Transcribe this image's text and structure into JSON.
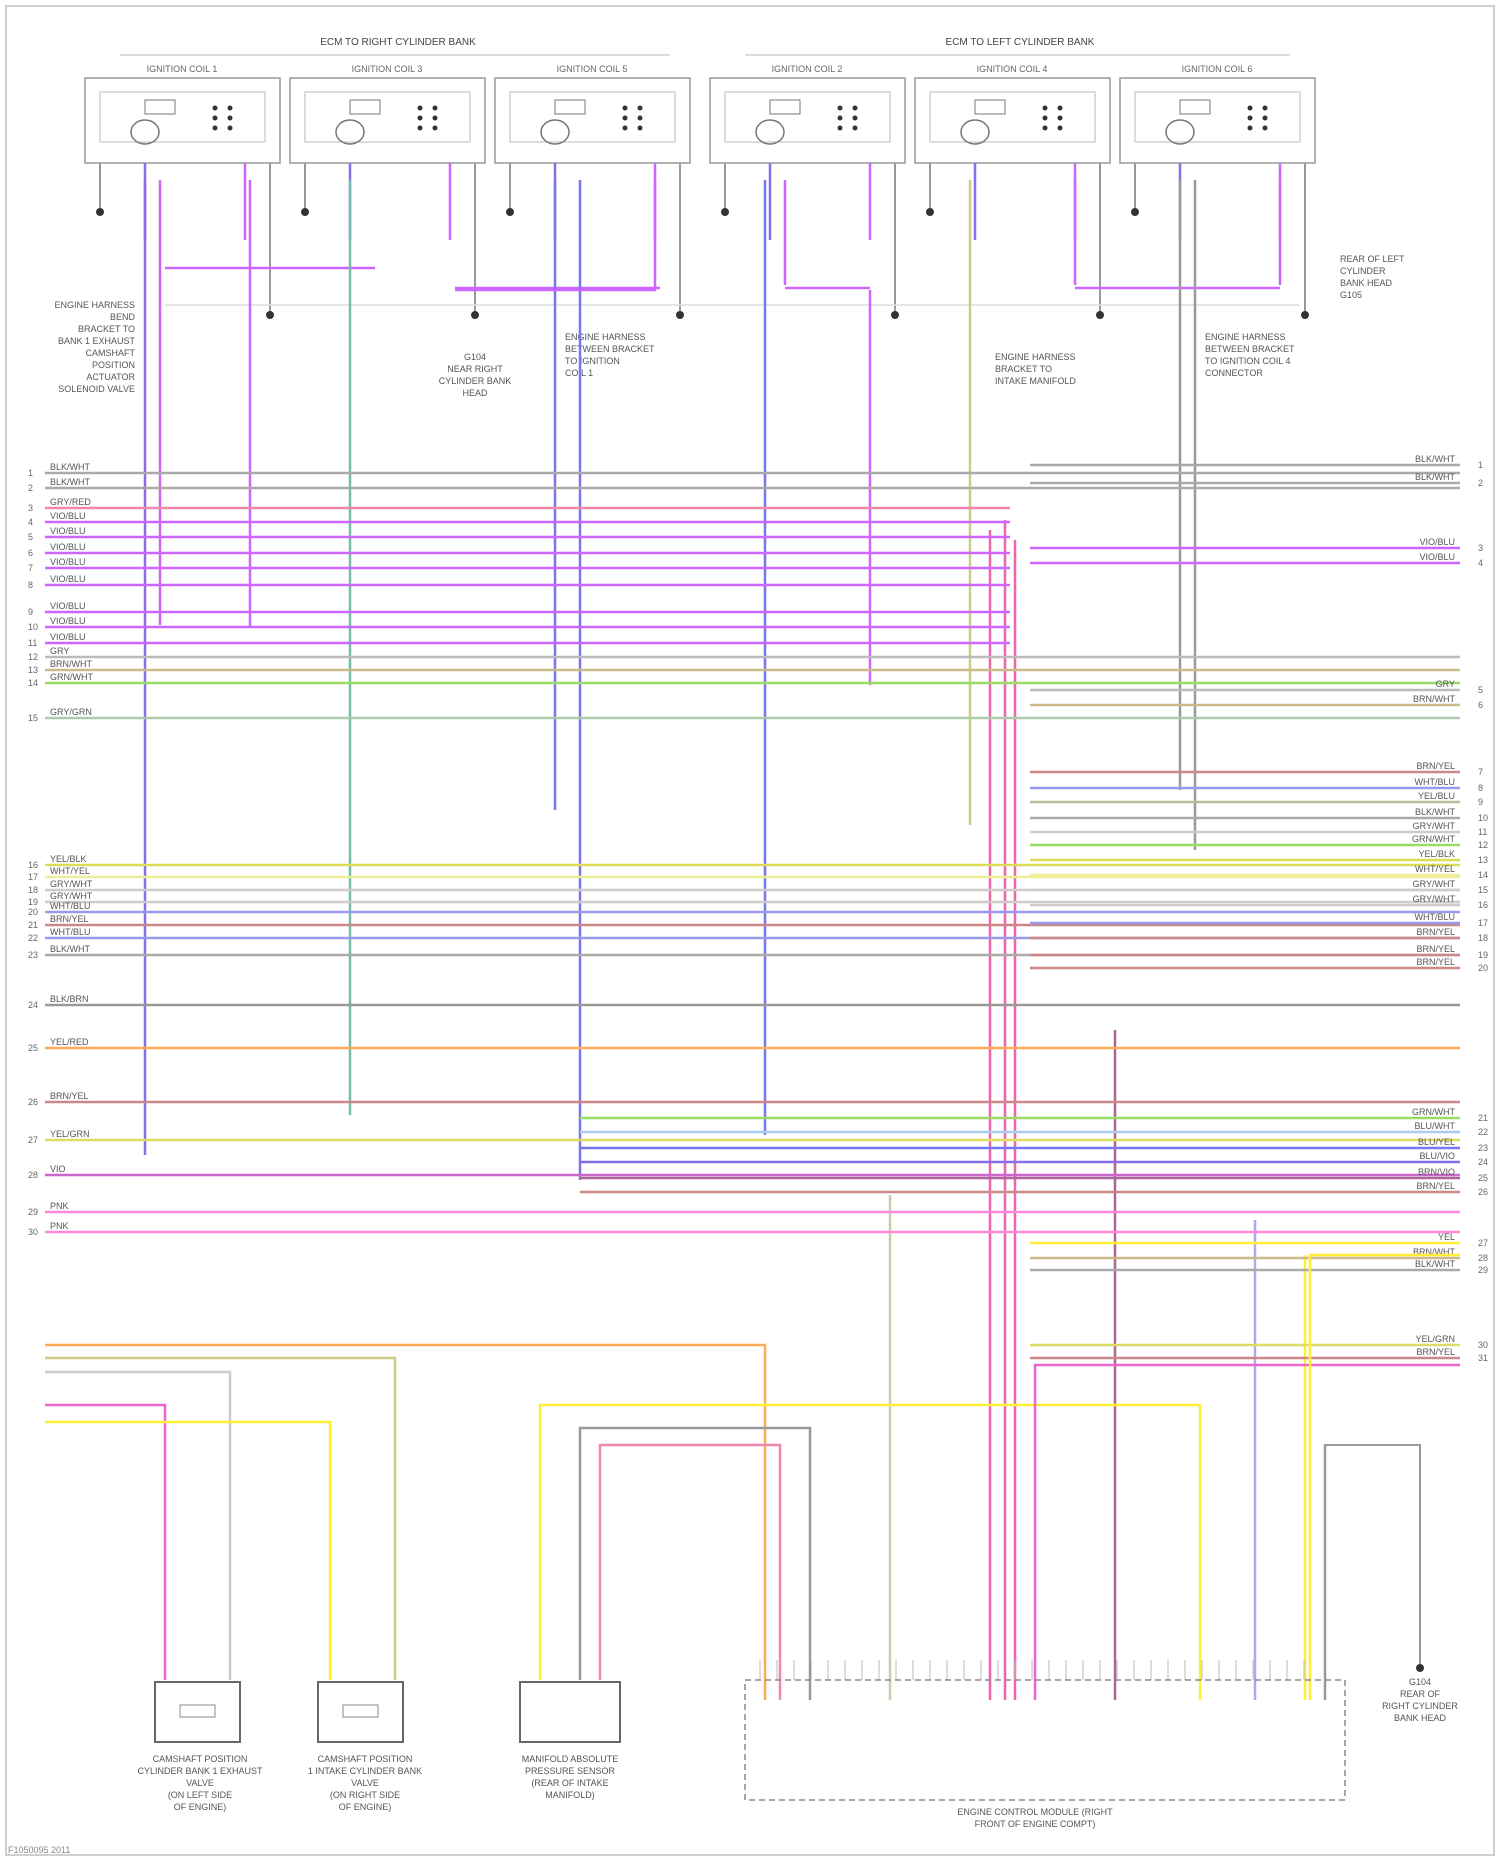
{
  "header": {
    "right_bank": "ECM TO RIGHT CYLINDER BANK",
    "left_bank": "ECM TO LEFT CYLINDER BANK"
  },
  "coils": [
    {
      "label": "IGNITION COIL 1"
    },
    {
      "label": "IGNITION COIL 3"
    },
    {
      "label": "IGNITION COIL 5"
    },
    {
      "label": "IGNITION COIL 2"
    },
    {
      "label": "IGNITION COIL 4"
    },
    {
      "label": "IGNITION COIL 6"
    }
  ],
  "notes": {
    "left_engine_harness": "ENGINE HARNESS BEND BRACKET TO BANK 1 EXHAUST CAMSHAFT POSITION ACTUATOR SOLENOID VALVE",
    "right_ground": "G104 NEAR RIGHT CYLINDER BANK HEAD",
    "engine_harness_1": "ENGINE HARNESS BETWEEN BRACKET TO IGNITION COIL 1",
    "engine_harness_2": "ENGINE HARNESS BRACKET TO INTAKE MANIFOLD",
    "engine_harness_3": "ENGINE HARNESS BETWEEN BRACKET TO IGNITION COIL 4 CONNECTOR",
    "left_ground": "REAR OF LEFT CYLINDER BANK HEAD G105"
  },
  "left_wires": [
    {
      "pin": "1",
      "label": "BLK/WHT"
    },
    {
      "pin": "2",
      "label": "BLK/WHT"
    },
    {
      "pin": "3",
      "label": "GRY/RED"
    },
    {
      "pin": "4",
      "label": "VIO/BLU"
    },
    {
      "pin": "5",
      "label": "VIO/BLU"
    },
    {
      "pin": "6",
      "label": "VIO/BLU"
    },
    {
      "pin": "7",
      "label": "VIO/BLU"
    },
    {
      "pin": "8",
      "label": "VIO/BLU"
    },
    {
      "pin": "9",
      "label": "VIO/BLU"
    },
    {
      "pin": "10",
      "label": "VIO/BLU"
    },
    {
      "pin": "11",
      "label": "VIO/BLU"
    },
    {
      "pin": "12",
      "label": "GRY"
    },
    {
      "pin": "13",
      "label": "BRN/WHT"
    },
    {
      "pin": "14",
      "label": "GRN/WHT"
    },
    {
      "pin": "15",
      "label": "GRY/GRN"
    },
    {
      "pin": "16",
      "label": "YEL/BLK"
    },
    {
      "pin": "17",
      "label": "WHT/YEL"
    },
    {
      "pin": "18",
      "label": "GRY/WHT"
    },
    {
      "pin": "19",
      "label": "GRY/WHT"
    },
    {
      "pin": "20",
      "label": "WHT/BLU"
    },
    {
      "pin": "21",
      "label": "BRN/YEL"
    },
    {
      "pin": "22",
      "label": "WHT/BLU"
    },
    {
      "pin": "23",
      "label": "BLK/WHT"
    },
    {
      "pin": "24",
      "label": "BLK/BRN"
    },
    {
      "pin": "25",
      "label": "YEL/RED"
    },
    {
      "pin": "26",
      "label": "BRN/YEL"
    },
    {
      "pin": "27",
      "label": "YEL/GRN"
    },
    {
      "pin": "28",
      "label": "VIO"
    },
    {
      "pin": "29",
      "label": "PNK"
    },
    {
      "pin": "30",
      "label": "PNK"
    }
  ],
  "right_wires": [
    {
      "pin": "1",
      "label": "BLK/WHT"
    },
    {
      "pin": "2",
      "label": "BLK/WHT"
    },
    {
      "pin": "3",
      "label": "VIO/BLU"
    },
    {
      "pin": "4",
      "label": "VIO/BLU"
    },
    {
      "pin": "5",
      "label": "GRY"
    },
    {
      "pin": "6",
      "label": "BRN/WHT"
    },
    {
      "pin": "7",
      "label": "BRN/YEL"
    },
    {
      "pin": "8",
      "label": "WHT/BLU"
    },
    {
      "pin": "9",
      "label": "YEL/BLU"
    },
    {
      "pin": "10",
      "label": "BLK/WHT"
    },
    {
      "pin": "11",
      "label": "GRY/WHT"
    },
    {
      "pin": "12",
      "label": "GRN/WHT"
    },
    {
      "pin": "13",
      "label": "YEL/BLK"
    },
    {
      "pin": "14",
      "label": "WHT/YEL"
    },
    {
      "pin": "15",
      "label": "GRY/WHT"
    },
    {
      "pin": "16",
      "label": "GRY/WHT"
    },
    {
      "pin": "17",
      "label": "WHT/BLU"
    },
    {
      "pin": "18",
      "label": "BRN/YEL"
    },
    {
      "pin": "19",
      "label": "BRN/YEL"
    },
    {
      "pin": "20",
      "label": "BRN/YEL"
    },
    {
      "pin": "21",
      "label": "GRN/WHT"
    },
    {
      "pin": "22",
      "label": "BLU/WHT"
    },
    {
      "pin": "23",
      "label": "BLU/YEL"
    },
    {
      "pin": "24",
      "label": "BLU/VIO"
    },
    {
      "pin": "25",
      "label": "BRN/VIO"
    },
    {
      "pin": "26",
      "label": "BRN/YEL"
    },
    {
      "pin": "27",
      "label": "YEL"
    },
    {
      "pin": "28",
      "label": "BRN/WHT"
    },
    {
      "pin": "29",
      "label": "BLK/WHT"
    },
    {
      "pin": "30",
      "label": "YEL/GRN"
    },
    {
      "pin": "31",
      "label": "BRN/YEL"
    }
  ],
  "bottom_components": {
    "valve_1": "CAMSHAFT POSITION CYLINDER BANK 1 EXHAUST VALVE (ON LEFT SIDE OF ENGINE)",
    "valve_2": "CAMSHAFT POSITION 1 INTAKE CYLINDER BANK VALVE (ON RIGHT SIDE OF ENGINE)",
    "sensor": "MANIFOLD ABSOLUTE PRESSURE SENSOR (REAR OF INTAKE MANIFOLD)",
    "ecm": "ENGINE CONTROL MODULE (RIGHT FRONT OF ENGINE COMPT)",
    "ground": "G104 REAR OF RIGHT CYLINDER BANK HEAD"
  },
  "footer": "F1050095 2011"
}
